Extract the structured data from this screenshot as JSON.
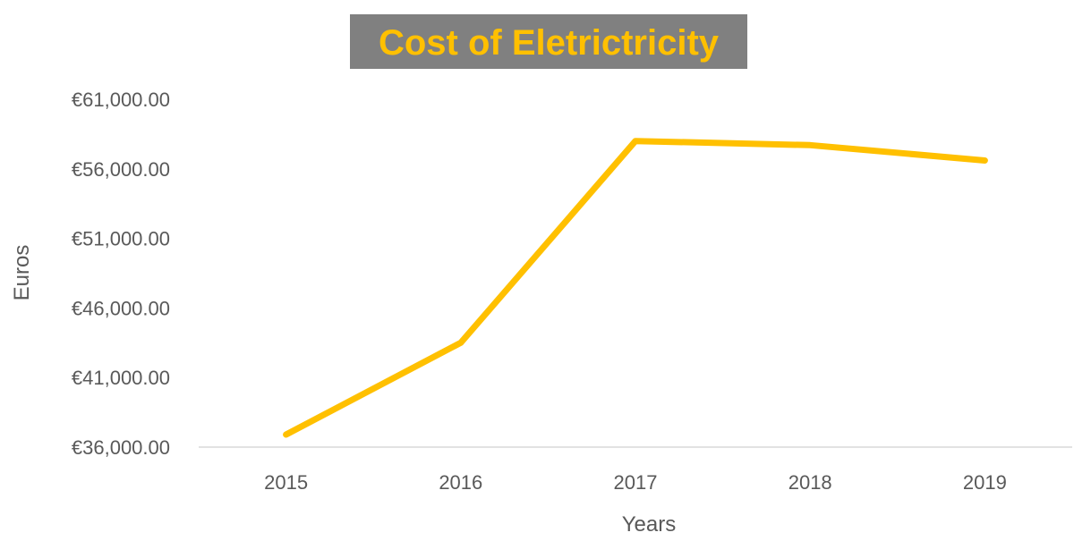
{
  "chart_data": {
    "type": "line",
    "title": "Cost of Eletrictricity",
    "xlabel": "Years",
    "ylabel": "Euros",
    "categories": [
      "2015",
      "2016",
      "2017",
      "2018",
      "2019"
    ],
    "series": [
      {
        "values": [
          36900,
          43500,
          58000,
          57700,
          56600
        ]
      }
    ],
    "ylim": [
      36000,
      61000
    ],
    "yticks": [
      36000,
      41000,
      46000,
      51000,
      56000,
      61000
    ],
    "ytick_labels": [
      "€36,000.00",
      "€41,000.00",
      "€46,000.00",
      "€51,000.00",
      "€56,000.00",
      "€61,000.00"
    ],
    "grid": false,
    "legend": "none",
    "colors": {
      "line": "#ffc000",
      "title_text": "#ffc000",
      "title_background": "#808080",
      "axis": "#d9d9d9",
      "text": "#595959"
    }
  }
}
